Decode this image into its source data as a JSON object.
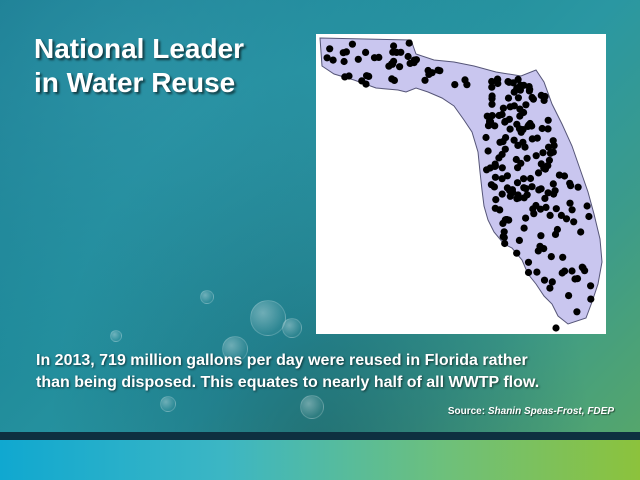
{
  "slide": {
    "title_lines": [
      "National Leader",
      "in Water Reuse"
    ],
    "caption_lines": [
      "In 2013, 719 million gallons per day were reused in Florida rather",
      "than being disposed. This equates to nearly half of all WWTP flow."
    ],
    "source_label": "Source:",
    "source_name": "Shanin Speas-Frost, FDEP"
  },
  "map": {
    "description_icon": "florida-map",
    "state_fill": "#c9c6ef",
    "state_stroke": "#555577",
    "dot_color": "#000000"
  },
  "colors": {
    "bar_left": "#10a8d0",
    "bar_right": "#8cc23c"
  }
}
